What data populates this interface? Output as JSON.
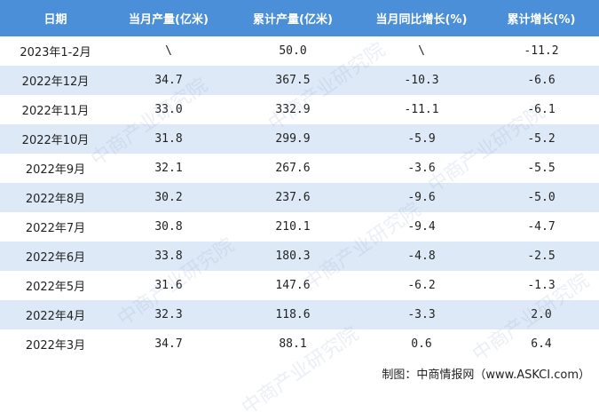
{
  "table": {
    "header": [
      "日期",
      "当月产量(亿米)",
      "累计产量(亿米)",
      "当月同比增长(%)",
      "累计增长(%)"
    ],
    "rows": [
      [
        "2023年1-2月",
        "\\",
        "50.0",
        "\\",
        "-11.2"
      ],
      [
        "2022年12月",
        "34.7",
        "367.5",
        "-10.3",
        "-6.6"
      ],
      [
        "2022年11月",
        "33.0",
        "332.9",
        "-11.1",
        "-6.1"
      ],
      [
        "2022年10月",
        "31.8",
        "299.9",
        "-5.9",
        "-5.2"
      ],
      [
        "2022年9月",
        "32.1",
        "267.6",
        "-3.6",
        "-5.5"
      ],
      [
        "2022年8月",
        "30.2",
        "237.6",
        "-9.6",
        "-5.0"
      ],
      [
        "2022年7月",
        "30.8",
        "210.1",
        "-9.4",
        "-4.7"
      ],
      [
        "2022年6月",
        "33.8",
        "180.3",
        "-4.8",
        "-2.5"
      ],
      [
        "2022年5月",
        "31.6",
        "147.6",
        "-6.2",
        "-1.3"
      ],
      [
        "2022年4月",
        "32.3",
        "118.6",
        "-3.3",
        "2.0"
      ],
      [
        "2022年3月",
        "34.7",
        "88.1",
        "0.6",
        "6.4"
      ]
    ]
  },
  "watermark": "中商产业研究院",
  "footer": "制图：中商情报网（www.ASKCI.com）"
}
